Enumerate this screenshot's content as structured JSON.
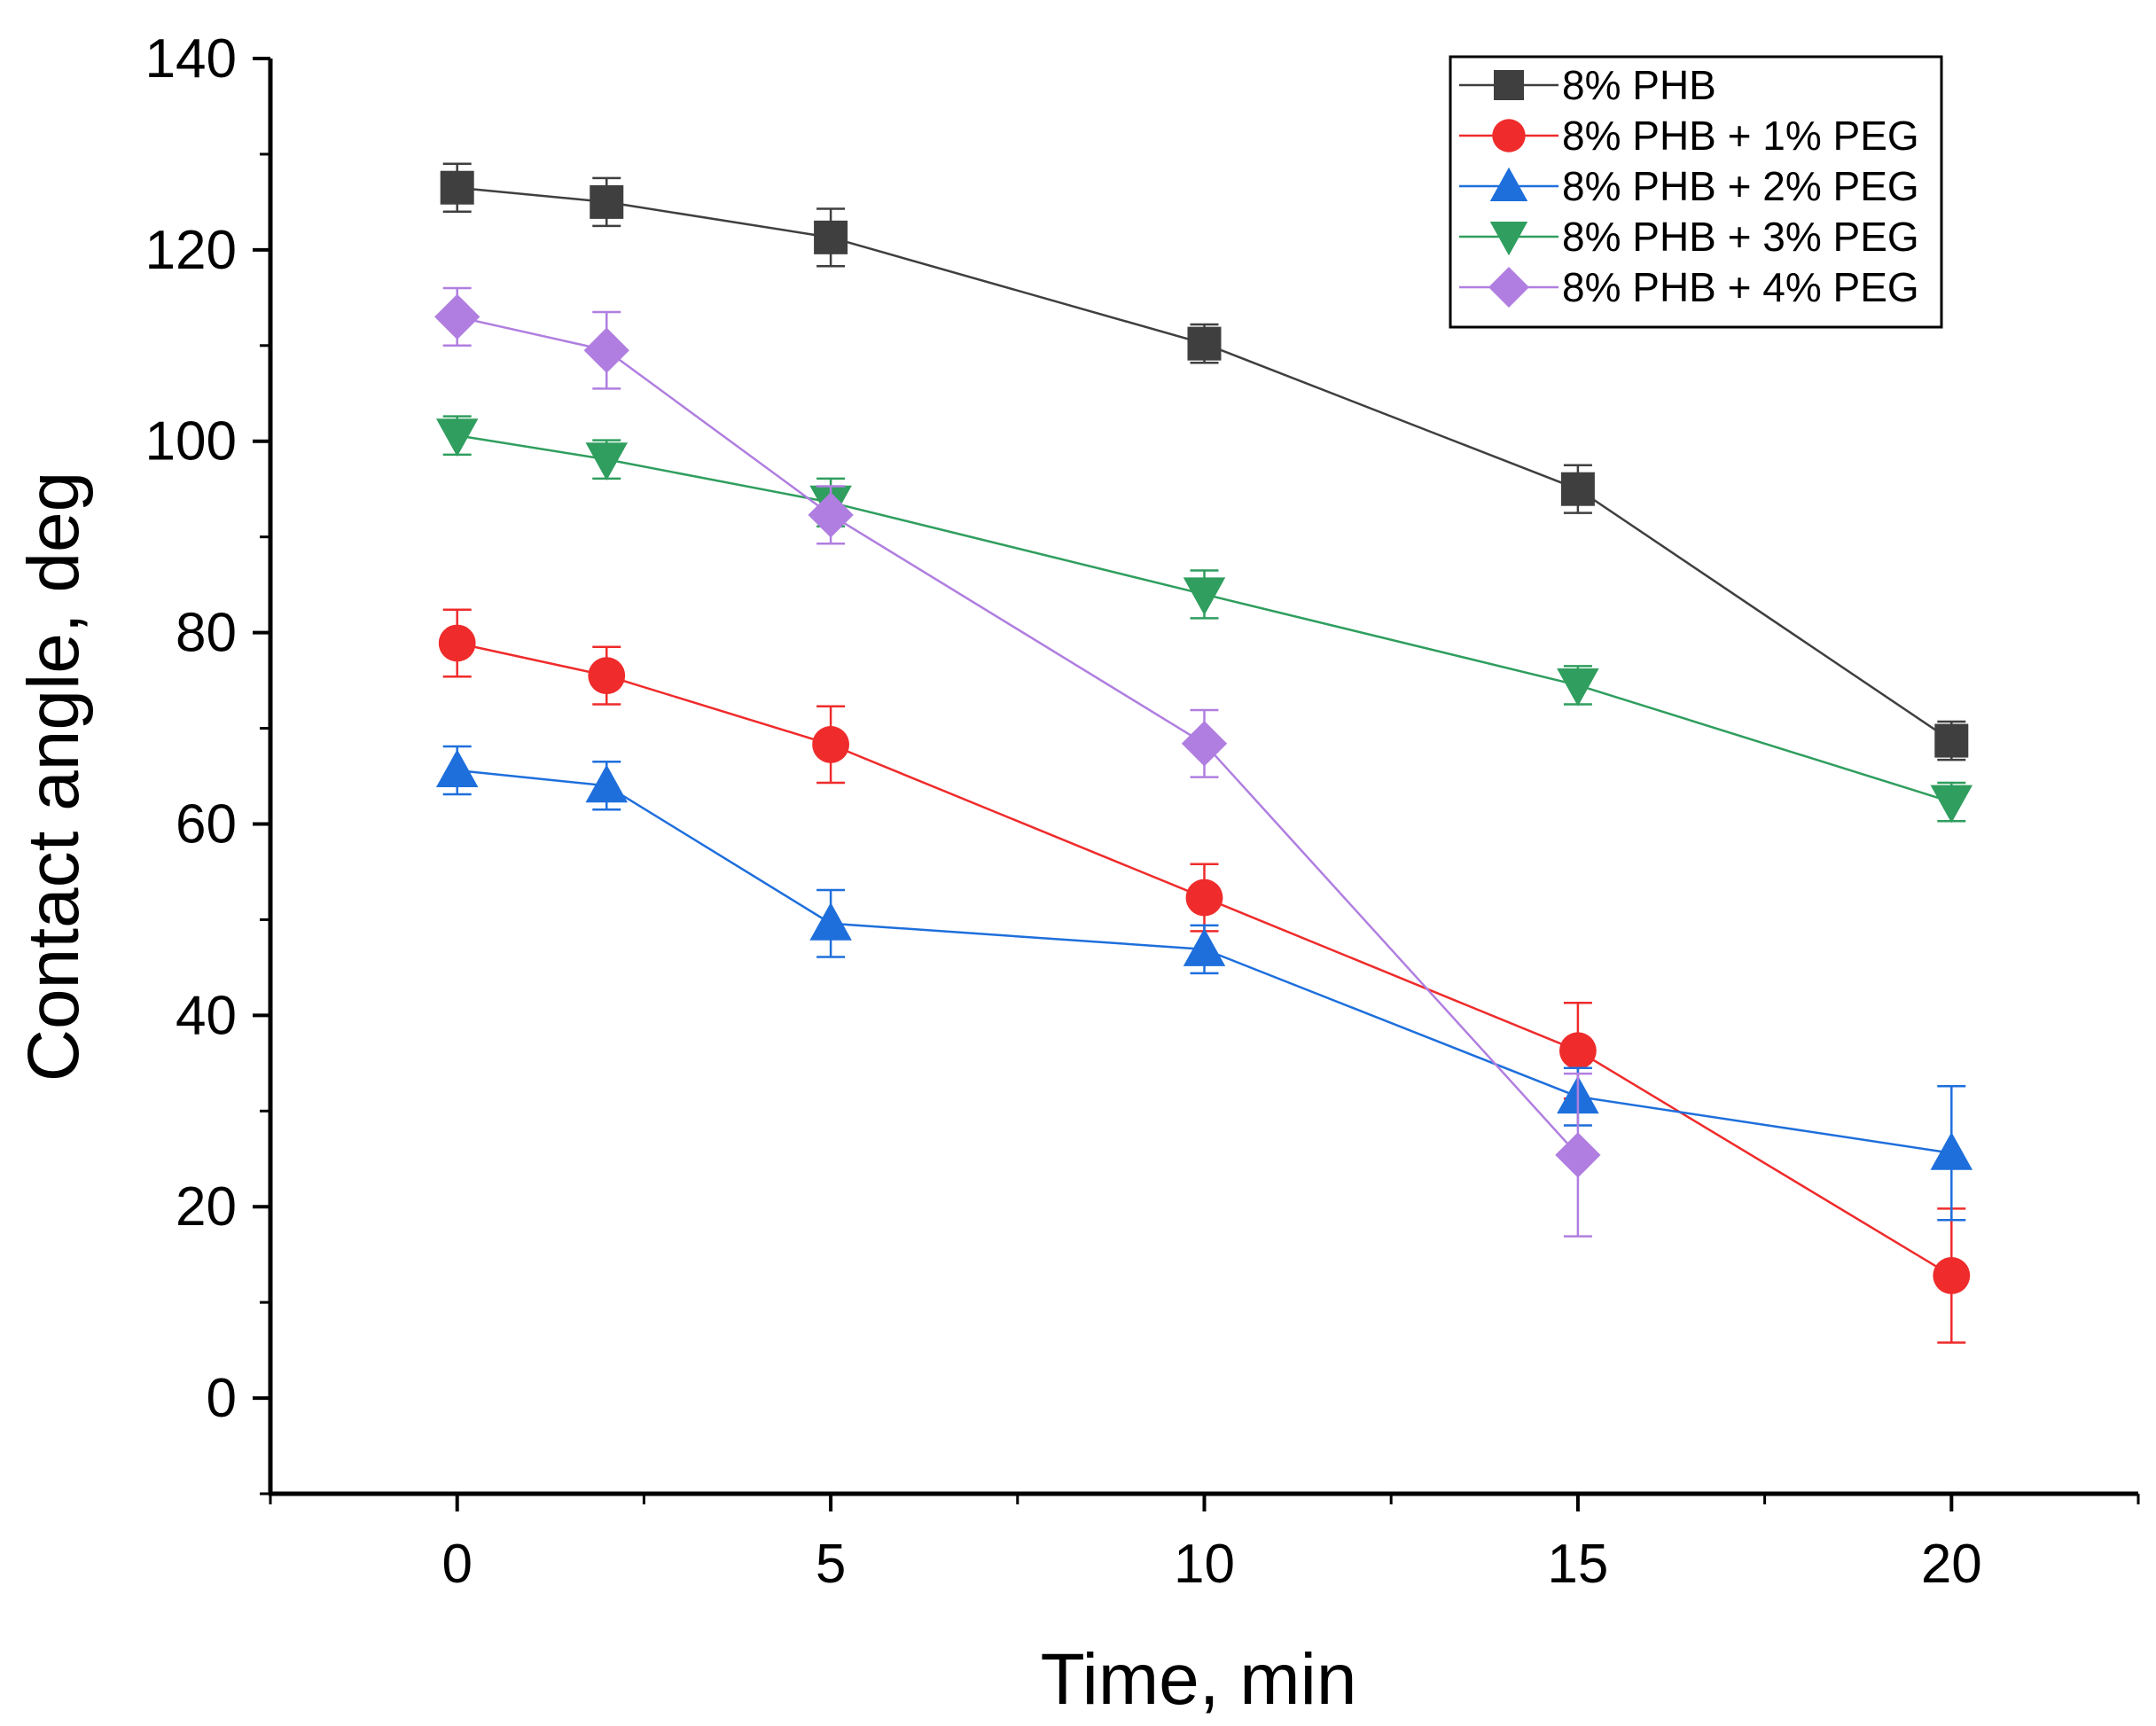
{
  "chart_data": {
    "type": "line",
    "title": "",
    "xlabel": "Time, min",
    "ylabel": "Contact angle, deg",
    "xlim": [
      -2.5,
      22.5
    ],
    "ylim": [
      -10,
      140
    ],
    "xticks": [
      0,
      5,
      10,
      15,
      20
    ],
    "xtick_labels": [
      "0",
      "5",
      "10",
      "15",
      "20"
    ],
    "yticks": [
      0,
      20,
      40,
      60,
      80,
      100,
      120,
      140
    ],
    "ytick_labels": [
      "0",
      "20",
      "40",
      "60",
      "80",
      "100",
      "120",
      "140"
    ],
    "grid": false,
    "legend_position": "top-right",
    "x": [
      0,
      2,
      5,
      10,
      15,
      20
    ],
    "series": [
      {
        "name": "8% PHB",
        "marker": "square",
        "color": "#3f3f3f",
        "values": [
          126.5,
          125.0,
          121.3,
          110.2,
          95.0,
          68.7
        ],
        "errors": [
          2.5,
          2.5,
          3.0,
          2.0,
          2.5,
          2.0
        ]
      },
      {
        "name": "8% PHB + 1% PEG",
        "marker": "circle",
        "color": "#ef2b2b",
        "values": [
          78.9,
          75.5,
          68.3,
          52.3,
          36.3,
          12.8
        ],
        "errors": [
          3.5,
          3.0,
          4.0,
          3.5,
          5.0,
          7.0
        ]
      },
      {
        "name": "8% PHB + 2% PEG",
        "marker": "triangle-up",
        "color": "#1e6fdc",
        "values": [
          65.6,
          64.0,
          49.6,
          46.9,
          31.5,
          25.6
        ],
        "errors": [
          2.5,
          2.5,
          3.5,
          2.5,
          3.0,
          7.0
        ]
      },
      {
        "name": "8% PHB + 3% PEG",
        "marker": "triangle-down",
        "color": "#2f9e5e",
        "values": [
          100.6,
          98.1,
          93.6,
          84.0,
          74.5,
          62.3
        ],
        "errors": [
          2.0,
          2.0,
          2.5,
          2.5,
          2.0,
          2.0
        ]
      },
      {
        "name": "8% PHB + 4% PEG",
        "marker": "diamond",
        "color": "#b07ee0",
        "values": [
          113.0,
          109.5,
          92.3,
          68.4,
          25.4,
          null
        ],
        "errors": [
          3.0,
          4.0,
          3.0,
          3.5,
          8.5,
          null
        ]
      }
    ]
  }
}
